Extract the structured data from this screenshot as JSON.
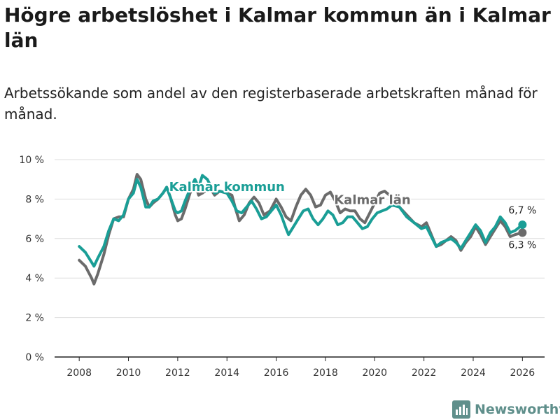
{
  "page": {
    "title": "Högre arbetslöshet i Kalmar kommun än i Kalmar län",
    "subtitle": "Arbetssökande som andel av den registerbaserade arbetskraften månad för månad.",
    "brand": "Newsworthy"
  },
  "colors": {
    "kommun": "#1a9e96",
    "lan": "#6b6b6b",
    "grid": "#dddddd",
    "axis": "#222222",
    "brand": "#5f8f8b"
  },
  "chart_data": {
    "type": "line",
    "title": "Högre arbetslöshet i Kalmar kommun än i Kalmar län",
    "xlabel": "",
    "ylabel": "",
    "xlim": [
      2007.0,
      2026.9
    ],
    "ylim": [
      0,
      10
    ],
    "y_ticks": [
      0,
      2,
      4,
      6,
      8,
      10
    ],
    "y_tick_labels": [
      "0 %",
      "2 %",
      "4 %",
      "6 %",
      "8 %",
      "10 %"
    ],
    "x_ticks": [
      2008,
      2010,
      2012,
      2014,
      2016,
      2018,
      2020,
      2022,
      2024,
      2026
    ],
    "x_tick_labels": [
      "2008",
      "2010",
      "2012",
      "2014",
      "2016",
      "2018",
      "2020",
      "2022",
      "2024",
      "2026"
    ],
    "grid": true,
    "series": [
      {
        "name": "Kalmar län",
        "label": "Kalmar län",
        "end_label": "6,3 %",
        "points": [
          [
            2008.0,
            4.9
          ],
          [
            2008.25,
            4.6
          ],
          [
            2008.5,
            4.0
          ],
          [
            2008.6,
            3.7
          ],
          [
            2008.75,
            4.2
          ],
          [
            2009.0,
            5.2
          ],
          [
            2009.2,
            6.2
          ],
          [
            2009.4,
            7.0
          ],
          [
            2009.6,
            7.1
          ],
          [
            2009.8,
            7.1
          ],
          [
            2010.0,
            8.0
          ],
          [
            2010.2,
            8.5
          ],
          [
            2010.35,
            9.25
          ],
          [
            2010.5,
            9.0
          ],
          [
            2010.7,
            8.0
          ],
          [
            2010.85,
            7.6
          ],
          [
            2011.0,
            7.8
          ],
          [
            2011.2,
            8.0
          ],
          [
            2011.4,
            8.3
          ],
          [
            2011.55,
            8.6
          ],
          [
            2011.7,
            8.1
          ],
          [
            2011.9,
            7.2
          ],
          [
            2012.0,
            6.9
          ],
          [
            2012.15,
            7.0
          ],
          [
            2012.3,
            7.5
          ],
          [
            2012.5,
            8.3
          ],
          [
            2012.7,
            8.8
          ],
          [
            2012.85,
            8.2
          ],
          [
            2013.0,
            8.3
          ],
          [
            2013.3,
            8.6
          ],
          [
            2013.5,
            8.2
          ],
          [
            2013.7,
            8.4
          ],
          [
            2014.0,
            8.3
          ],
          [
            2014.2,
            8.2
          ],
          [
            2014.35,
            7.5
          ],
          [
            2014.5,
            6.9
          ],
          [
            2014.7,
            7.2
          ],
          [
            2014.9,
            7.8
          ],
          [
            2015.1,
            8.1
          ],
          [
            2015.3,
            7.8
          ],
          [
            2015.5,
            7.2
          ],
          [
            2015.75,
            7.4
          ],
          [
            2016.0,
            8.0
          ],
          [
            2016.2,
            7.6
          ],
          [
            2016.4,
            7.1
          ],
          [
            2016.6,
            6.9
          ],
          [
            2016.8,
            7.6
          ],
          [
            2017.0,
            8.2
          ],
          [
            2017.2,
            8.5
          ],
          [
            2017.4,
            8.2
          ],
          [
            2017.6,
            7.6
          ],
          [
            2017.8,
            7.7
          ],
          [
            2018.0,
            8.2
          ],
          [
            2018.2,
            8.35
          ],
          [
            2018.4,
            7.9
          ],
          [
            2018.6,
            7.3
          ],
          [
            2018.8,
            7.5
          ],
          [
            2019.0,
            7.4
          ],
          [
            2019.2,
            7.4
          ],
          [
            2019.4,
            7.0
          ],
          [
            2019.6,
            6.8
          ],
          [
            2019.8,
            7.3
          ],
          [
            2020.0,
            7.8
          ],
          [
            2020.2,
            8.3
          ],
          [
            2020.4,
            8.4
          ],
          [
            2020.6,
            8.2
          ],
          [
            2020.8,
            8.0
          ],
          [
            2021.0,
            7.6
          ],
          [
            2021.3,
            7.2
          ],
          [
            2021.6,
            6.8
          ],
          [
            2021.9,
            6.6
          ],
          [
            2022.1,
            6.8
          ],
          [
            2022.3,
            6.2
          ],
          [
            2022.5,
            5.6
          ],
          [
            2022.7,
            5.7
          ],
          [
            2022.9,
            5.9
          ],
          [
            2023.1,
            6.1
          ],
          [
            2023.3,
            5.9
          ],
          [
            2023.5,
            5.4
          ],
          [
            2023.7,
            5.8
          ],
          [
            2023.9,
            6.1
          ],
          [
            2024.1,
            6.6
          ],
          [
            2024.3,
            6.2
          ],
          [
            2024.5,
            5.7
          ],
          [
            2024.7,
            6.1
          ],
          [
            2024.9,
            6.5
          ],
          [
            2025.1,
            6.9
          ],
          [
            2025.3,
            6.6
          ],
          [
            2025.5,
            6.1
          ],
          [
            2025.7,
            6.2
          ],
          [
            2026.0,
            6.3
          ]
        ]
      },
      {
        "name": "Kalmar kommun",
        "label": "Kalmar kommun",
        "end_label": "6,7 %",
        "points": [
          [
            2008.0,
            5.6
          ],
          [
            2008.25,
            5.3
          ],
          [
            2008.5,
            4.8
          ],
          [
            2008.6,
            4.6
          ],
          [
            2008.75,
            5.0
          ],
          [
            2009.0,
            5.6
          ],
          [
            2009.2,
            6.4
          ],
          [
            2009.4,
            7.0
          ],
          [
            2009.6,
            6.9
          ],
          [
            2009.8,
            7.2
          ],
          [
            2010.0,
            8.0
          ],
          [
            2010.2,
            8.3
          ],
          [
            2010.35,
            9.0
          ],
          [
            2010.5,
            8.6
          ],
          [
            2010.7,
            7.6
          ],
          [
            2010.85,
            7.6
          ],
          [
            2011.0,
            7.9
          ],
          [
            2011.2,
            8.0
          ],
          [
            2011.4,
            8.3
          ],
          [
            2011.55,
            8.6
          ],
          [
            2011.7,
            8.1
          ],
          [
            2011.9,
            7.4
          ],
          [
            2012.0,
            7.3
          ],
          [
            2012.15,
            7.4
          ],
          [
            2012.3,
            7.9
          ],
          [
            2012.5,
            8.5
          ],
          [
            2012.7,
            9.0
          ],
          [
            2012.85,
            8.6
          ],
          [
            2013.0,
            9.2
          ],
          [
            2013.2,
            9.0
          ],
          [
            2013.5,
            8.3
          ],
          [
            2013.7,
            8.4
          ],
          [
            2014.0,
            8.3
          ],
          [
            2014.2,
            7.9
          ],
          [
            2014.4,
            7.4
          ],
          [
            2014.6,
            7.3
          ],
          [
            2014.8,
            7.6
          ],
          [
            2015.0,
            7.9
          ],
          [
            2015.2,
            7.5
          ],
          [
            2015.4,
            7.0
          ],
          [
            2015.6,
            7.1
          ],
          [
            2015.8,
            7.4
          ],
          [
            2016.0,
            7.7
          ],
          [
            2016.2,
            7.2
          ],
          [
            2016.4,
            6.5
          ],
          [
            2016.5,
            6.2
          ],
          [
            2016.7,
            6.6
          ],
          [
            2016.9,
            7.0
          ],
          [
            2017.1,
            7.4
          ],
          [
            2017.3,
            7.5
          ],
          [
            2017.5,
            7.0
          ],
          [
            2017.7,
            6.7
          ],
          [
            2017.9,
            7.0
          ],
          [
            2018.1,
            7.4
          ],
          [
            2018.3,
            7.2
          ],
          [
            2018.5,
            6.7
          ],
          [
            2018.7,
            6.8
          ],
          [
            2018.9,
            7.1
          ],
          [
            2019.1,
            7.1
          ],
          [
            2019.3,
            6.8
          ],
          [
            2019.5,
            6.5
          ],
          [
            2019.7,
            6.6
          ],
          [
            2019.9,
            7.0
          ],
          [
            2020.1,
            7.3
          ],
          [
            2020.3,
            7.4
          ],
          [
            2020.5,
            7.5
          ],
          [
            2020.7,
            7.7
          ],
          [
            2021.0,
            7.6
          ],
          [
            2021.3,
            7.1
          ],
          [
            2021.6,
            6.8
          ],
          [
            2021.9,
            6.5
          ],
          [
            2022.1,
            6.6
          ],
          [
            2022.3,
            6.1
          ],
          [
            2022.5,
            5.6
          ],
          [
            2022.7,
            5.8
          ],
          [
            2022.9,
            5.9
          ],
          [
            2023.1,
            6.0
          ],
          [
            2023.3,
            5.8
          ],
          [
            2023.5,
            5.5
          ],
          [
            2023.7,
            5.9
          ],
          [
            2023.9,
            6.3
          ],
          [
            2024.1,
            6.7
          ],
          [
            2024.3,
            6.4
          ],
          [
            2024.5,
            5.8
          ],
          [
            2024.7,
            6.3
          ],
          [
            2024.9,
            6.6
          ],
          [
            2025.1,
            7.1
          ],
          [
            2025.3,
            6.8
          ],
          [
            2025.5,
            6.3
          ],
          [
            2025.7,
            6.4
          ],
          [
            2026.0,
            6.7
          ]
        ]
      }
    ]
  }
}
